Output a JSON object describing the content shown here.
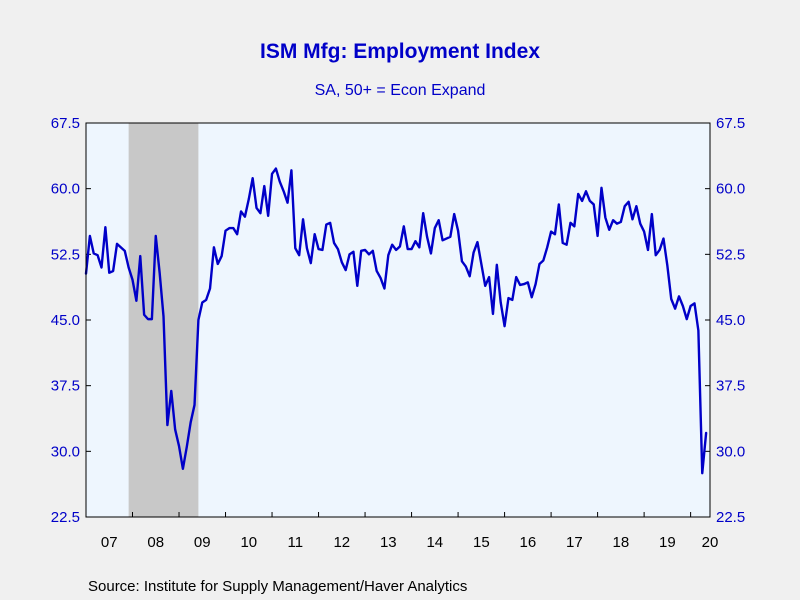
{
  "chart_data": {
    "type": "line",
    "title": "ISM Mfg: Employment Index",
    "subtitle": "SA, 50+ = Econ Expand",
    "source": "Source:  Institute for Supply Management/Haver Analytics",
    "ylim": [
      22.5,
      67.5
    ],
    "yticks": [
      "67.5",
      "60.0",
      "52.5",
      "45.0",
      "37.5",
      "30.0",
      "22.5"
    ],
    "ytick_values": [
      67.5,
      60.0,
      52.5,
      45.0,
      37.5,
      30.0,
      22.5
    ],
    "xlim": [
      "2007-01",
      "2020-06"
    ],
    "xticks": [
      {
        "label": "07",
        "year": 2007
      },
      {
        "label": "08",
        "year": 2008
      },
      {
        "label": "09",
        "year": 2009
      },
      {
        "label": "10",
        "year": 2010
      },
      {
        "label": "11",
        "year": 2011
      },
      {
        "label": "12",
        "year": 2012
      },
      {
        "label": "13",
        "year": 2013
      },
      {
        "label": "14",
        "year": 2014
      },
      {
        "label": "15",
        "year": 2015
      },
      {
        "label": "16",
        "year": 2016
      },
      {
        "label": "17",
        "year": 2017
      },
      {
        "label": "18",
        "year": 2018
      },
      {
        "label": "19",
        "year": 2019
      },
      {
        "label": "20",
        "year": 2020
      }
    ],
    "recession": {
      "start": "2007-12",
      "end": "2009-06"
    },
    "colors": {
      "line": "#0000c8",
      "plot_background": "#eef6fe",
      "recession_shade": "#c8c8c8",
      "text": "#0000c8",
      "page_background": "#f0f0f0"
    },
    "grid": false,
    "series": [
      {
        "start": "2007-01",
        "values": [
          50.3,
          54.6,
          52.6,
          52.4,
          51.0,
          55.6,
          50.4,
          50.6,
          53.7,
          53.3,
          52.9,
          51.0,
          49.6,
          47.2,
          52.3,
          45.6,
          45.1,
          45.1,
          54.6,
          50.4,
          45.4,
          33.0,
          36.9,
          32.5,
          30.6,
          28.0,
          30.5,
          33.3,
          35.3,
          45.0,
          47.0,
          47.3,
          48.6,
          53.3,
          51.4,
          52.3,
          55.2,
          55.5,
          55.5,
          54.8,
          57.4,
          56.8,
          58.8,
          61.2,
          57.8,
          57.2,
          60.3,
          56.9,
          61.7,
          62.3,
          60.8,
          59.7,
          58.4,
          62.1,
          53.2,
          52.4,
          56.5,
          53.2,
          51.5,
          54.8,
          53.1,
          53.0,
          55.9,
          56.1,
          53.8,
          53.1,
          51.6,
          50.7,
          52.5,
          52.8,
          48.9,
          52.9,
          53.0,
          52.5,
          52.9,
          50.6,
          49.8,
          48.6,
          52.4,
          53.6,
          53.0,
          53.4,
          55.7,
          53.1,
          53.1,
          54.0,
          53.3,
          57.2,
          54.5,
          52.6,
          55.5,
          56.4,
          54.1,
          54.3,
          54.5,
          57.1,
          55.2,
          51.7,
          51.1,
          50.0,
          52.7,
          53.9,
          51.4,
          48.9,
          49.9,
          45.7,
          51.3,
          47.0,
          44.3,
          47.5,
          47.3,
          49.9,
          49.0,
          49.1,
          49.3,
          47.6,
          49.1,
          51.4,
          51.8,
          53.3,
          55.1,
          54.8,
          58.2,
          53.8,
          53.6,
          56.1,
          55.7,
          59.4,
          58.6,
          59.7,
          58.6,
          58.2,
          54.6,
          60.1,
          56.7,
          55.3,
          56.4,
          56.0,
          56.2,
          58.0,
          58.5,
          56.5,
          58.0,
          56.0,
          55.1,
          53.0,
          57.1,
          52.4,
          53.0,
          54.3,
          51.2,
          47.4,
          46.3,
          47.7,
          46.6,
          45.1,
          46.6,
          46.9,
          43.8,
          27.5,
          32.1
        ]
      }
    ]
  }
}
